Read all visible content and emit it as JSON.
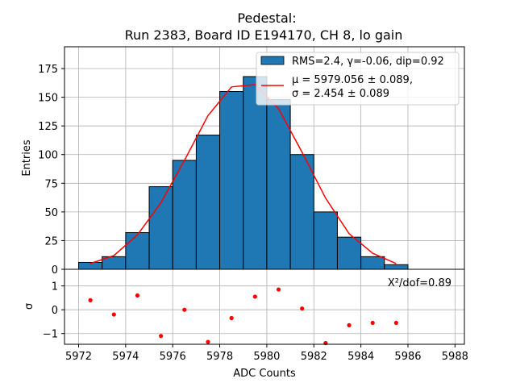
{
  "chart_data": {
    "type": "bar",
    "title": "Pedestal:",
    "subtitle": "Run 2383, Board ID E194170, CH 8, lo gain",
    "xlabel": "ADC Counts",
    "ylabel": "Entries",
    "residual_ylabel": "σ",
    "xlim": [
      5971.4,
      5988.4
    ],
    "ylim": [
      0,
      194
    ],
    "residual_ylim": [
      -1.45,
      1.7
    ],
    "x_ticks": [
      5972,
      5974,
      5976,
      5978,
      5980,
      5982,
      5984,
      5986,
      5988
    ],
    "y_ticks": [
      0,
      25,
      50,
      75,
      100,
      125,
      150,
      175
    ],
    "residual_ticks": [
      -1,
      0,
      1
    ],
    "grid": true,
    "legend_position": "top-right",
    "bin_width": 1,
    "bins": [
      {
        "left": 5972,
        "count": 6
      },
      {
        "left": 5973,
        "count": 11
      },
      {
        "left": 5974,
        "count": 32
      },
      {
        "left": 5975,
        "count": 72
      },
      {
        "left": 5976,
        "count": 95
      },
      {
        "left": 5977,
        "count": 117
      },
      {
        "left": 5978,
        "count": 155
      },
      {
        "left": 5979,
        "count": 168
      },
      {
        "left": 5980,
        "count": 148
      },
      {
        "left": 5981,
        "count": 100
      },
      {
        "left": 5982,
        "count": 50
      },
      {
        "left": 5983,
        "count": 28
      },
      {
        "left": 5984,
        "count": 11
      },
      {
        "left": 5985,
        "count": 4
      }
    ],
    "fit_curve": {
      "x": [
        5972.5,
        5973.5,
        5974.5,
        5975.5,
        5976.5,
        5977.5,
        5978.5,
        5979.5,
        5980.5,
        5981.5,
        5982.5,
        5983.5,
        5984.5,
        5985.5
      ],
      "y": [
        5,
        12,
        30,
        58,
        95,
        134,
        159,
        161,
        140,
        102,
        62,
        31,
        14,
        5
      ]
    },
    "residuals": {
      "x": [
        5972.5,
        5973.5,
        5974.5,
        5975.5,
        5976.5,
        5977.5,
        5978.5,
        5979.5,
        5980.5,
        5981.5,
        5982.5,
        5983.5,
        5984.5,
        5985.5
      ],
      "y": [
        0.4,
        -0.2,
        0.6,
        -1.1,
        0.0,
        -1.35,
        -0.35,
        0.55,
        0.85,
        0.05,
        -1.4,
        -0.65,
        -0.55,
        -0.55
      ]
    },
    "legend": {
      "histogram": "RMS=2.4, γ=-0.06, dip=0.92",
      "fit_line1": "μ = 5979.056 ± 0.089,",
      "fit_line2": "σ = 2.454 ± 0.089"
    },
    "annotation": "Χ²/dof=0.89",
    "colors": {
      "bar_fill": "#1f77b4",
      "bar_edge": "#000000",
      "fit_line": "#ff0000",
      "residual_points": "#ff0000",
      "grid": "#b0b0b0"
    }
  }
}
